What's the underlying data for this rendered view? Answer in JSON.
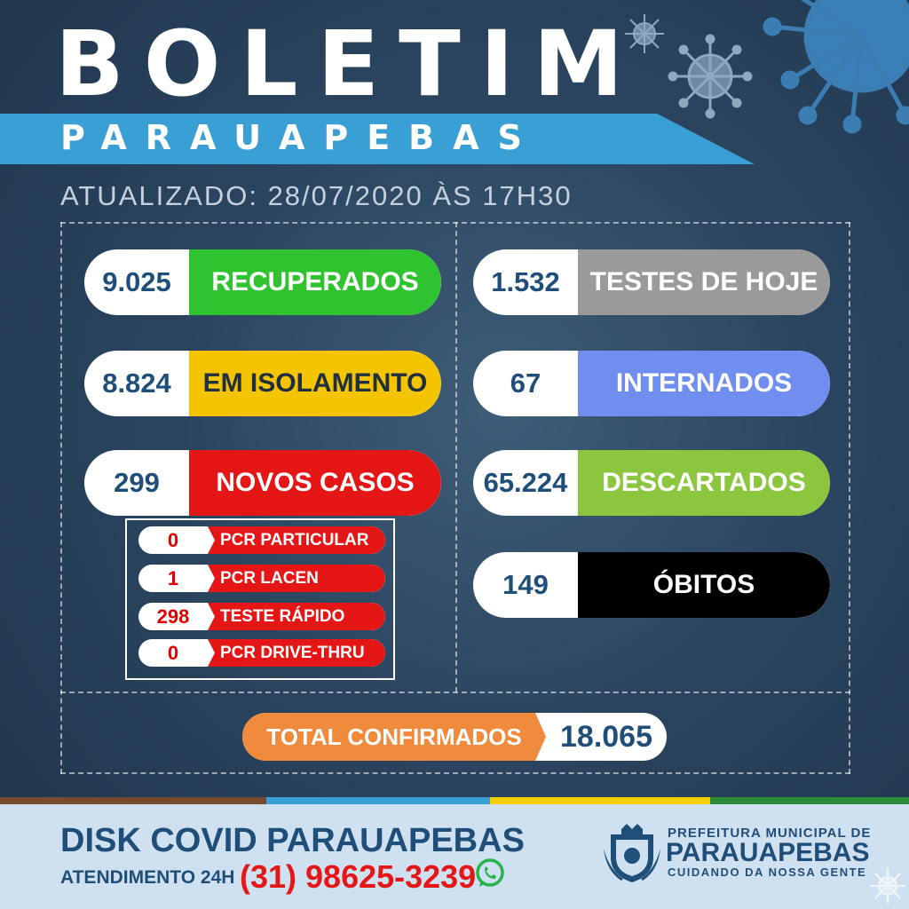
{
  "title": "BOLETIM",
  "subtitle": "PARAUAPEBAS",
  "updated": "ATUALIZADO: 28/07/2020 ÀS 17H30",
  "left_stats": [
    {
      "value": "9.025",
      "label": "RECUPERADOS",
      "color": "#2fc42f"
    },
    {
      "value": "8.824",
      "label": "EM ISOLAMENTO",
      "color": "#f5c400"
    },
    {
      "value": "299",
      "label": "NOVOS CASOS",
      "color": "#e41616"
    }
  ],
  "new_cases_breakdown": [
    {
      "value": "0",
      "label": "PCR PARTICULAR"
    },
    {
      "value": "1",
      "label": "PCR LACEN"
    },
    {
      "value": "298",
      "label": "TESTE RÁPIDO"
    },
    {
      "value": "0",
      "label": "PCR DRIVE-THRU"
    }
  ],
  "right_stats": [
    {
      "value": "1.532",
      "label": "TESTES DE HOJE",
      "color": "#9a9a9a"
    },
    {
      "value": "67",
      "label": "INTERNADOS",
      "color": "#6f8ef0"
    },
    {
      "value": "65.224",
      "label": "DESCARTADOS",
      "color": "#8cc63f"
    },
    {
      "value": "149",
      "label": "ÓBITOS",
      "color": "#000000"
    }
  ],
  "total": {
    "label": "TOTAL CONFIRMADOS",
    "value": "18.065",
    "color": "#f08a3c"
  },
  "footer": {
    "disk": "DISK COVID PARAUAPEBAS",
    "attendance": "ATENDIMENTO 24H",
    "phone": "(31) 98625-3239",
    "whatsapp_icon": "whatsapp-icon",
    "logo_line1": "PREFEITURA MUNICIPAL DE",
    "logo_line2": "PARAUAPEBAS",
    "logo_line3": "CUIDANDO DA NOSSA GENTE"
  }
}
